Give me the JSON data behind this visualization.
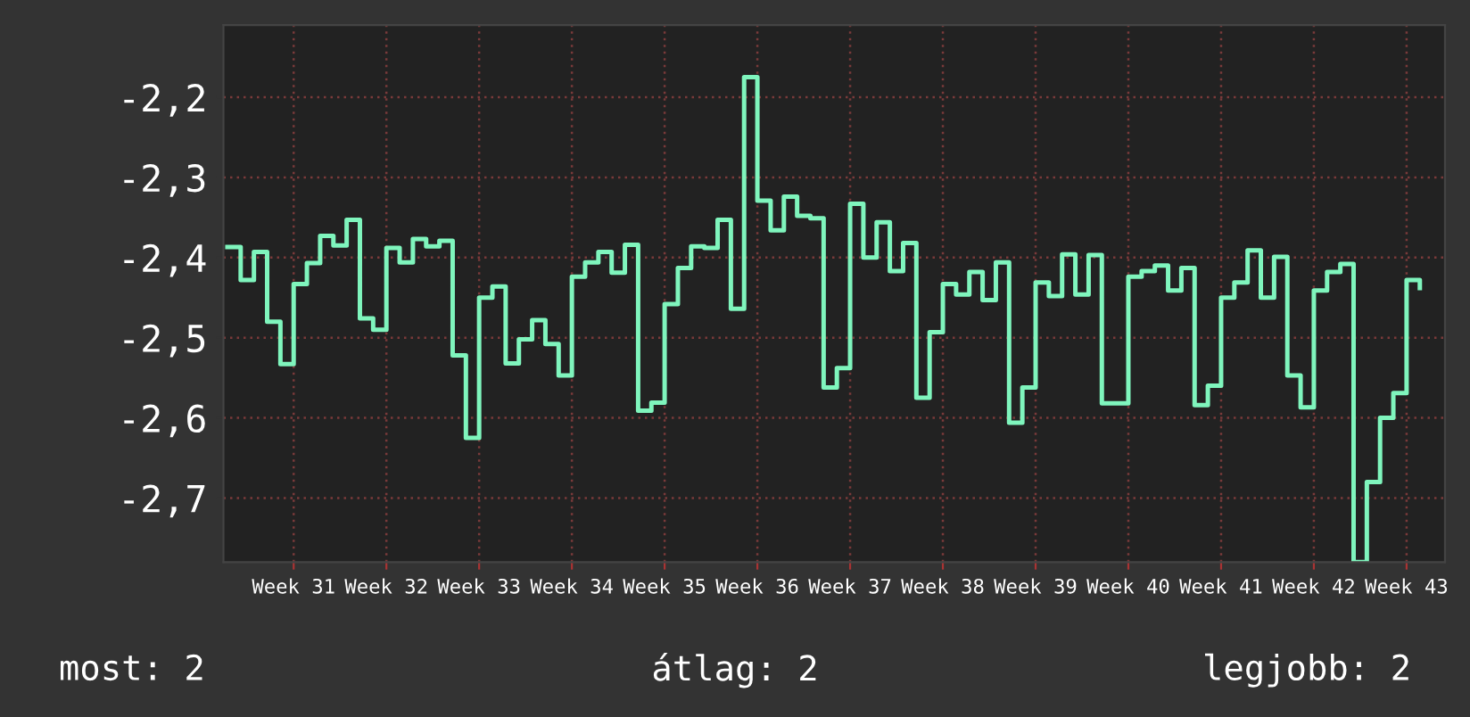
{
  "chart_data": {
    "type": "step",
    "categories": [
      null,
      null,
      null,
      null,
      null,
      "Week 31",
      null,
      null,
      null,
      null,
      null,
      null,
      "Week 32",
      null,
      null,
      null,
      null,
      null,
      null,
      "Week 33",
      null,
      null,
      null,
      null,
      null,
      null,
      "Week 34",
      null,
      null,
      null,
      null,
      null,
      null,
      "Week 35",
      null,
      null,
      null,
      null,
      null,
      null,
      "Week 36",
      null,
      null,
      null,
      null,
      null,
      null,
      "Week 37",
      null,
      null,
      null,
      null,
      null,
      null,
      "Week 38",
      null,
      null,
      null,
      null,
      null,
      null,
      "Week 39",
      null,
      null,
      null,
      null,
      null,
      null,
      "Week 40",
      null,
      null,
      null,
      null,
      null,
      null,
      "Week 41",
      null,
      null,
      null,
      null,
      null,
      null,
      "Week 42",
      null,
      null,
      null,
      null,
      null,
      null,
      "Week 43",
      null
    ],
    "series": [
      {
        "color": "#7ff5bd",
        "values": [
          -2.387,
          -2.428,
          -2.393,
          -2.48,
          -2.533,
          -2.433,
          -2.407,
          -2.373,
          -2.385,
          -2.353,
          -2.476,
          -2.49,
          -2.388,
          -2.406,
          -2.377,
          -2.386,
          -2.379,
          -2.522,
          -2.625,
          -2.45,
          -2.436,
          -2.532,
          -2.502,
          -2.478,
          -2.508,
          -2.547,
          -2.424,
          -2.406,
          -2.393,
          -2.419,
          -2.384,
          -2.591,
          -2.581,
          -2.458,
          -2.413,
          -2.386,
          -2.388,
          -2.353,
          -2.464,
          -2.175,
          -2.329,
          -2.366,
          -2.324,
          -2.348,
          -2.351,
          -2.562,
          -2.538,
          -2.333,
          -2.4,
          -2.356,
          -2.417,
          -2.382,
          -2.575,
          -2.493,
          -2.433,
          -2.446,
          -2.418,
          -2.453,
          -2.406,
          -2.606,
          -2.562,
          -2.431,
          -2.448,
          -2.396,
          -2.446,
          -2.397,
          -2.582,
          -2.582,
          -2.424,
          -2.417,
          -2.41,
          -2.441,
          -2.413,
          -2.584,
          -2.56,
          -2.45,
          -2.431,
          -2.391,
          -2.45,
          -2.399,
          -2.547,
          -2.587,
          -2.441,
          -2.418,
          -2.408,
          -2.78,
          -2.68,
          -2.6,
          -2.569,
          -2.428,
          -2.438
        ]
      }
    ],
    "ylim": [
      -2.78,
      -2.11
    ],
    "yticks": [
      {
        "value": -2.2,
        "label": "-2,2"
      },
      {
        "value": -2.3,
        "label": "-2,3"
      },
      {
        "value": -2.4,
        "label": "-2,4"
      },
      {
        "value": -2.5,
        "label": "-2,5"
      },
      {
        "value": -2.6,
        "label": "-2,6"
      },
      {
        "value": -2.7,
        "label": "-2,7"
      }
    ],
    "grid": true,
    "annotations": [
      "most: 2",
      "átlag: 2",
      "legjobb: 2"
    ]
  }
}
